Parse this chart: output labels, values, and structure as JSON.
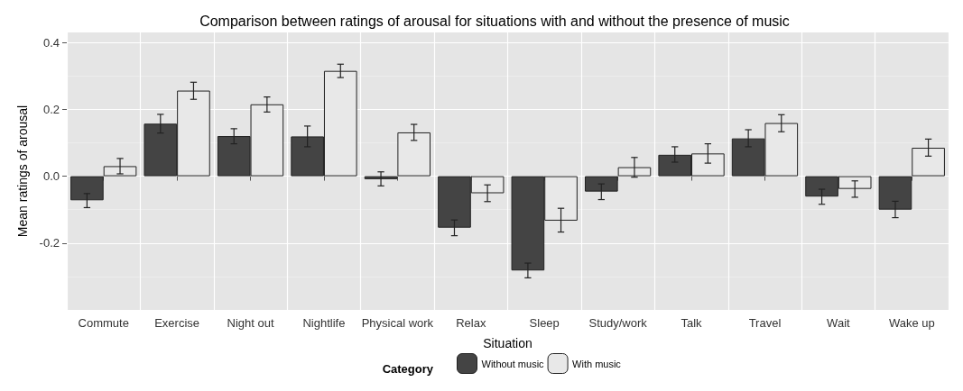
{
  "chart_data": {
    "type": "bar",
    "title": "Comparison between ratings of arousal for situations with and without the presence of music",
    "xlabel": "Situation",
    "ylabel": "Mean ratings of arousal",
    "legend_title": "Category",
    "categories": [
      "Commute",
      "Exercise",
      "Night out",
      "Nightlife",
      "Physical work",
      "Relax",
      "Sleep",
      "Study/work",
      "Talk",
      "Travel",
      "Wait",
      "Wake up"
    ],
    "series": [
      {
        "name": "Without music",
        "color": "#444444",
        "values": [
          -0.072,
          0.157,
          0.12,
          0.119,
          -0.009,
          -0.154,
          -0.282,
          -0.046,
          0.064,
          0.113,
          -0.061,
          -0.1
        ],
        "errors": [
          [
            -0.094,
            -0.052
          ],
          [
            0.129,
            0.185
          ],
          [
            0.097,
            0.142
          ],
          [
            0.088,
            0.15
          ],
          [
            -0.029,
            0.013
          ],
          [
            -0.178,
            -0.131
          ],
          [
            -0.304,
            -0.26
          ],
          [
            -0.07,
            -0.023
          ],
          [
            0.042,
            0.088
          ],
          [
            0.088,
            0.139
          ],
          [
            -0.084,
            -0.039
          ],
          [
            -0.124,
            -0.075
          ]
        ]
      },
      {
        "name": "With music",
        "color": "#e8e8e8",
        "values": [
          0.03,
          0.256,
          0.215,
          0.315,
          0.131,
          -0.051,
          -0.133,
          0.027,
          0.068,
          0.159,
          -0.038,
          0.085
        ],
        "errors": [
          [
            0.007,
            0.053
          ],
          [
            0.23,
            0.281
          ],
          [
            0.192,
            0.237
          ],
          [
            0.295,
            0.335
          ],
          [
            0.107,
            0.155
          ],
          [
            -0.076,
            -0.026
          ],
          [
            -0.167,
            -0.096
          ],
          [
            -0.003,
            0.056
          ],
          [
            0.039,
            0.097
          ],
          [
            0.133,
            0.184
          ],
          [
            -0.063,
            -0.014
          ],
          [
            0.06,
            0.111
          ]
        ]
      }
    ],
    "ylim": [
      -0.4,
      0.43
    ],
    "yticks": [
      {
        "value": -0.3,
        "label": null
      },
      {
        "value": -0.2,
        "label": "-0.2"
      },
      {
        "value": -0.1,
        "label": null
      },
      {
        "value": 0,
        "label": "0.0"
      },
      {
        "value": 0.1,
        "label": null
      },
      {
        "value": 0.2,
        "label": "0.2"
      },
      {
        "value": 0.3,
        "label": null
      },
      {
        "value": 0.4,
        "label": "0.4"
      }
    ],
    "grid": true,
    "legend": "bottom"
  }
}
